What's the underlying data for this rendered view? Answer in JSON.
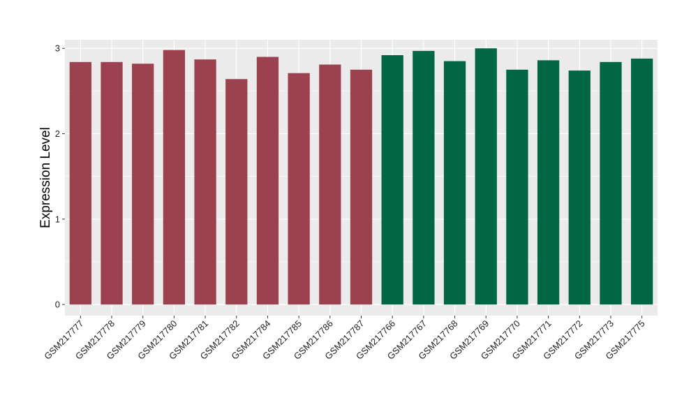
{
  "chart_data": {
    "type": "bar",
    "title": "",
    "xlabel": "",
    "ylabel": "Expression Level",
    "ylim": [
      -0.13,
      3.1
    ],
    "yticks": [
      0,
      1,
      2,
      3
    ],
    "grid": true,
    "legend": "none",
    "panel_background": "#EBEBEB",
    "gridline_color": "#FFFFFF",
    "categories": [
      "GSM217777",
      "GSM217778",
      "GSM217779",
      "GSM217780",
      "GSM217781",
      "GSM217782",
      "GSM217784",
      "GSM217785",
      "GSM217786",
      "GSM217787",
      "GSM217766",
      "GSM217767",
      "GSM217768",
      "GSM217769",
      "GSM217770",
      "GSM217771",
      "GSM217772",
      "GSM217773",
      "GSM217775"
    ],
    "values": [
      2.84,
      2.84,
      2.82,
      2.98,
      2.87,
      2.64,
      2.9,
      2.71,
      2.81,
      2.75,
      2.92,
      2.97,
      2.85,
      3.0,
      2.75,
      2.86,
      2.74,
      2.84,
      2.88
    ],
    "groups": [
      {
        "color": "#9B4150",
        "count": 10
      },
      {
        "color": "#006644",
        "count": 9
      }
    ]
  }
}
